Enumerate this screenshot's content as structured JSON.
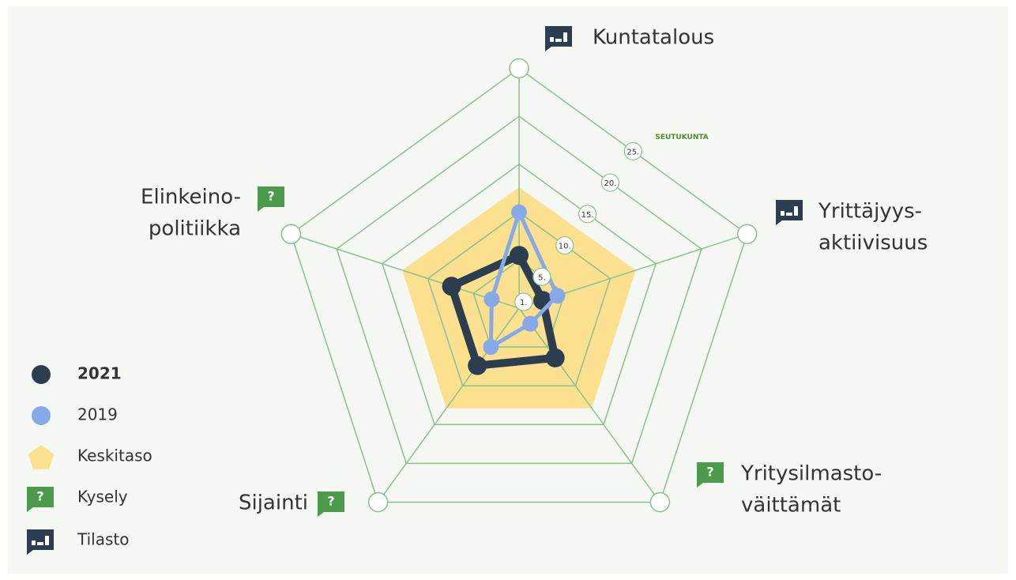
{
  "chart_data": {
    "type": "radar",
    "axes": [
      {
        "label": [
          "Kuntatalous"
        ],
        "kind": "Tilasto"
      },
      {
        "label": [
          "Yrittäjyys-",
          "aktiivisuus"
        ],
        "kind": "Tilasto"
      },
      {
        "label": [
          "Yritysilmasto-",
          "väittämät"
        ],
        "kind": "Kysely"
      },
      {
        "label": [
          "Sijainti"
        ],
        "kind": "Kysely"
      },
      {
        "label": [
          "Elinkeino-",
          "politiikka"
        ],
        "kind": "Kysely"
      }
    ],
    "series": [
      {
        "name": "Keskitaso",
        "color": "#fbe08f",
        "style": "area",
        "values": [
          12.6,
          12.8,
          12.9,
          12.9,
          12.8
        ]
      },
      {
        "name": "2021",
        "color": "#2b3d4f",
        "style": "line",
        "values": [
          5.5,
          2.6,
          6.4,
          7.4,
          7.4
        ]
      },
      {
        "name": "2019",
        "color": "#86a9e8",
        "style": "line",
        "values": [
          10.0,
          4.2,
          2.0,
          5.0,
          3.0
        ]
      }
    ],
    "indicators": [
      {
        "name": "Kysely",
        "color": "#4c9a4c",
        "symbol": "?"
      },
      {
        "name": "Tilasto",
        "color": "#2b3d4f"
      }
    ],
    "rlim": [
      0,
      25
    ],
    "rticks": [
      {
        "value": 1,
        "label": "1."
      },
      {
        "value": 5,
        "label": "5."
      },
      {
        "value": 10,
        "label": "10."
      },
      {
        "value": 15,
        "label": "15."
      },
      {
        "value": 20,
        "label": "20."
      },
      {
        "value": 25,
        "label": "25."
      }
    ],
    "rticks_title": "SEUTUKUNTA",
    "grid_color": "#8cc08c"
  }
}
